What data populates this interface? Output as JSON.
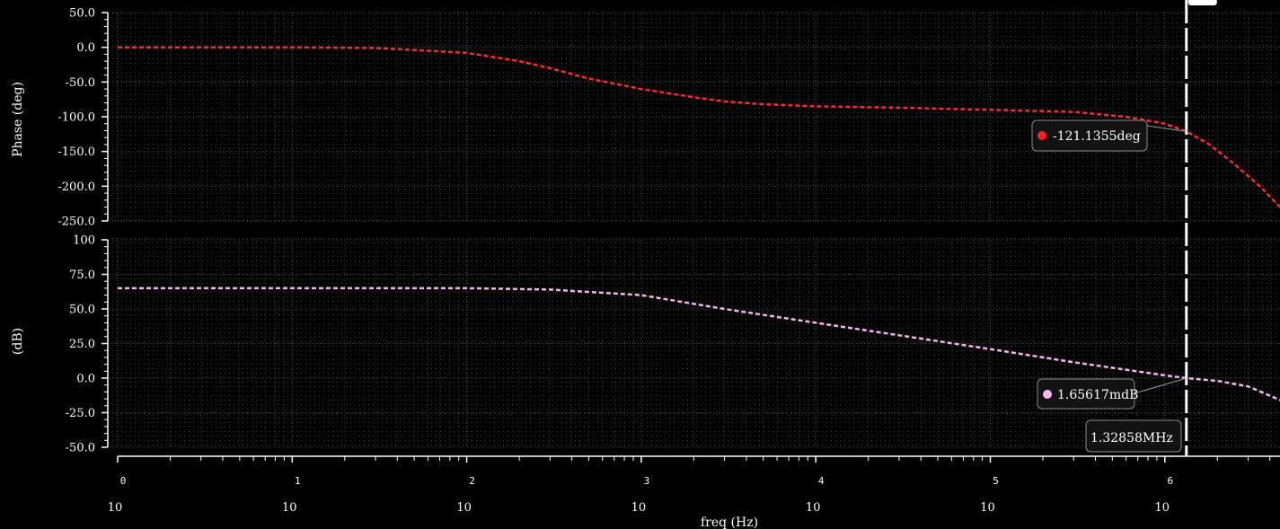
{
  "chart_data": [
    {
      "type": "line",
      "ylabel": "Phase (deg)",
      "ylim": [
        -250,
        50
      ],
      "yticks": [
        "50.0",
        "0.0",
        "-50.0",
        "-100.0",
        "-150.0",
        "-200.0",
        "-250.0"
      ],
      "x_scale": "log",
      "xlim": [
        1,
        5000000
      ],
      "grid": true,
      "series": [
        {
          "color": "#ff2a2a",
          "style": "dashed",
          "x": [
            1,
            10,
            30,
            100,
            200,
            300,
            500,
            1000,
            2000,
            3000,
            5000,
            10000,
            30000,
            100000,
            300000,
            600000,
            1000000,
            1328580,
            1800000,
            2500000,
            3500000,
            5000000
          ],
          "y": [
            0,
            0,
            -1,
            -8,
            -20,
            -30,
            -45,
            -60,
            -72,
            -78,
            -82,
            -85,
            -87,
            -90,
            -93,
            -100,
            -110,
            -121.1355,
            -140,
            -168,
            -200,
            -240
          ]
        }
      ]
    },
    {
      "type": "line",
      "ylabel": "(dB)",
      "ylim": [
        -50,
        100
      ],
      "yticks": [
        "100",
        "75.0",
        "50.0",
        "25.0",
        "0.0",
        "-25.0",
        "-50.0"
      ],
      "x_scale": "log",
      "xlim": [
        1,
        5000000
      ],
      "xlabel": "freq (Hz)",
      "xticks": [
        {
          "base": "10",
          "exp": "0"
        },
        {
          "base": "10",
          "exp": "1"
        },
        {
          "base": "10",
          "exp": "2"
        },
        {
          "base": "10",
          "exp": "3"
        },
        {
          "base": "10",
          "exp": "4"
        },
        {
          "base": "10",
          "exp": "5"
        },
        {
          "base": "10",
          "exp": "6"
        }
      ],
      "grid": true,
      "series": [
        {
          "color": "#f5b4ee",
          "style": "dashed",
          "x": [
            1,
            10,
            100,
            300,
            1000,
            3000,
            10000,
            30000,
            100000,
            300000,
            1000000,
            1328580,
            2000000,
            3000000,
            5000000
          ],
          "y": [
            65,
            65,
            65,
            64,
            60,
            50,
            40,
            31,
            21,
            11.5,
            2,
            0.00166,
            -2,
            -6,
            -18
          ]
        }
      ]
    }
  ],
  "markers": {
    "phase_label": "-121.1355deg",
    "phase_value": -121.1355,
    "phase_dot_color": "#ff1f1f",
    "mag_label": "1.65617mdB",
    "mag_value": 0.00166,
    "mag_dot_color": "#f8b9f0",
    "freq_label": "1.32858MHz",
    "freq_value": 1328580
  }
}
